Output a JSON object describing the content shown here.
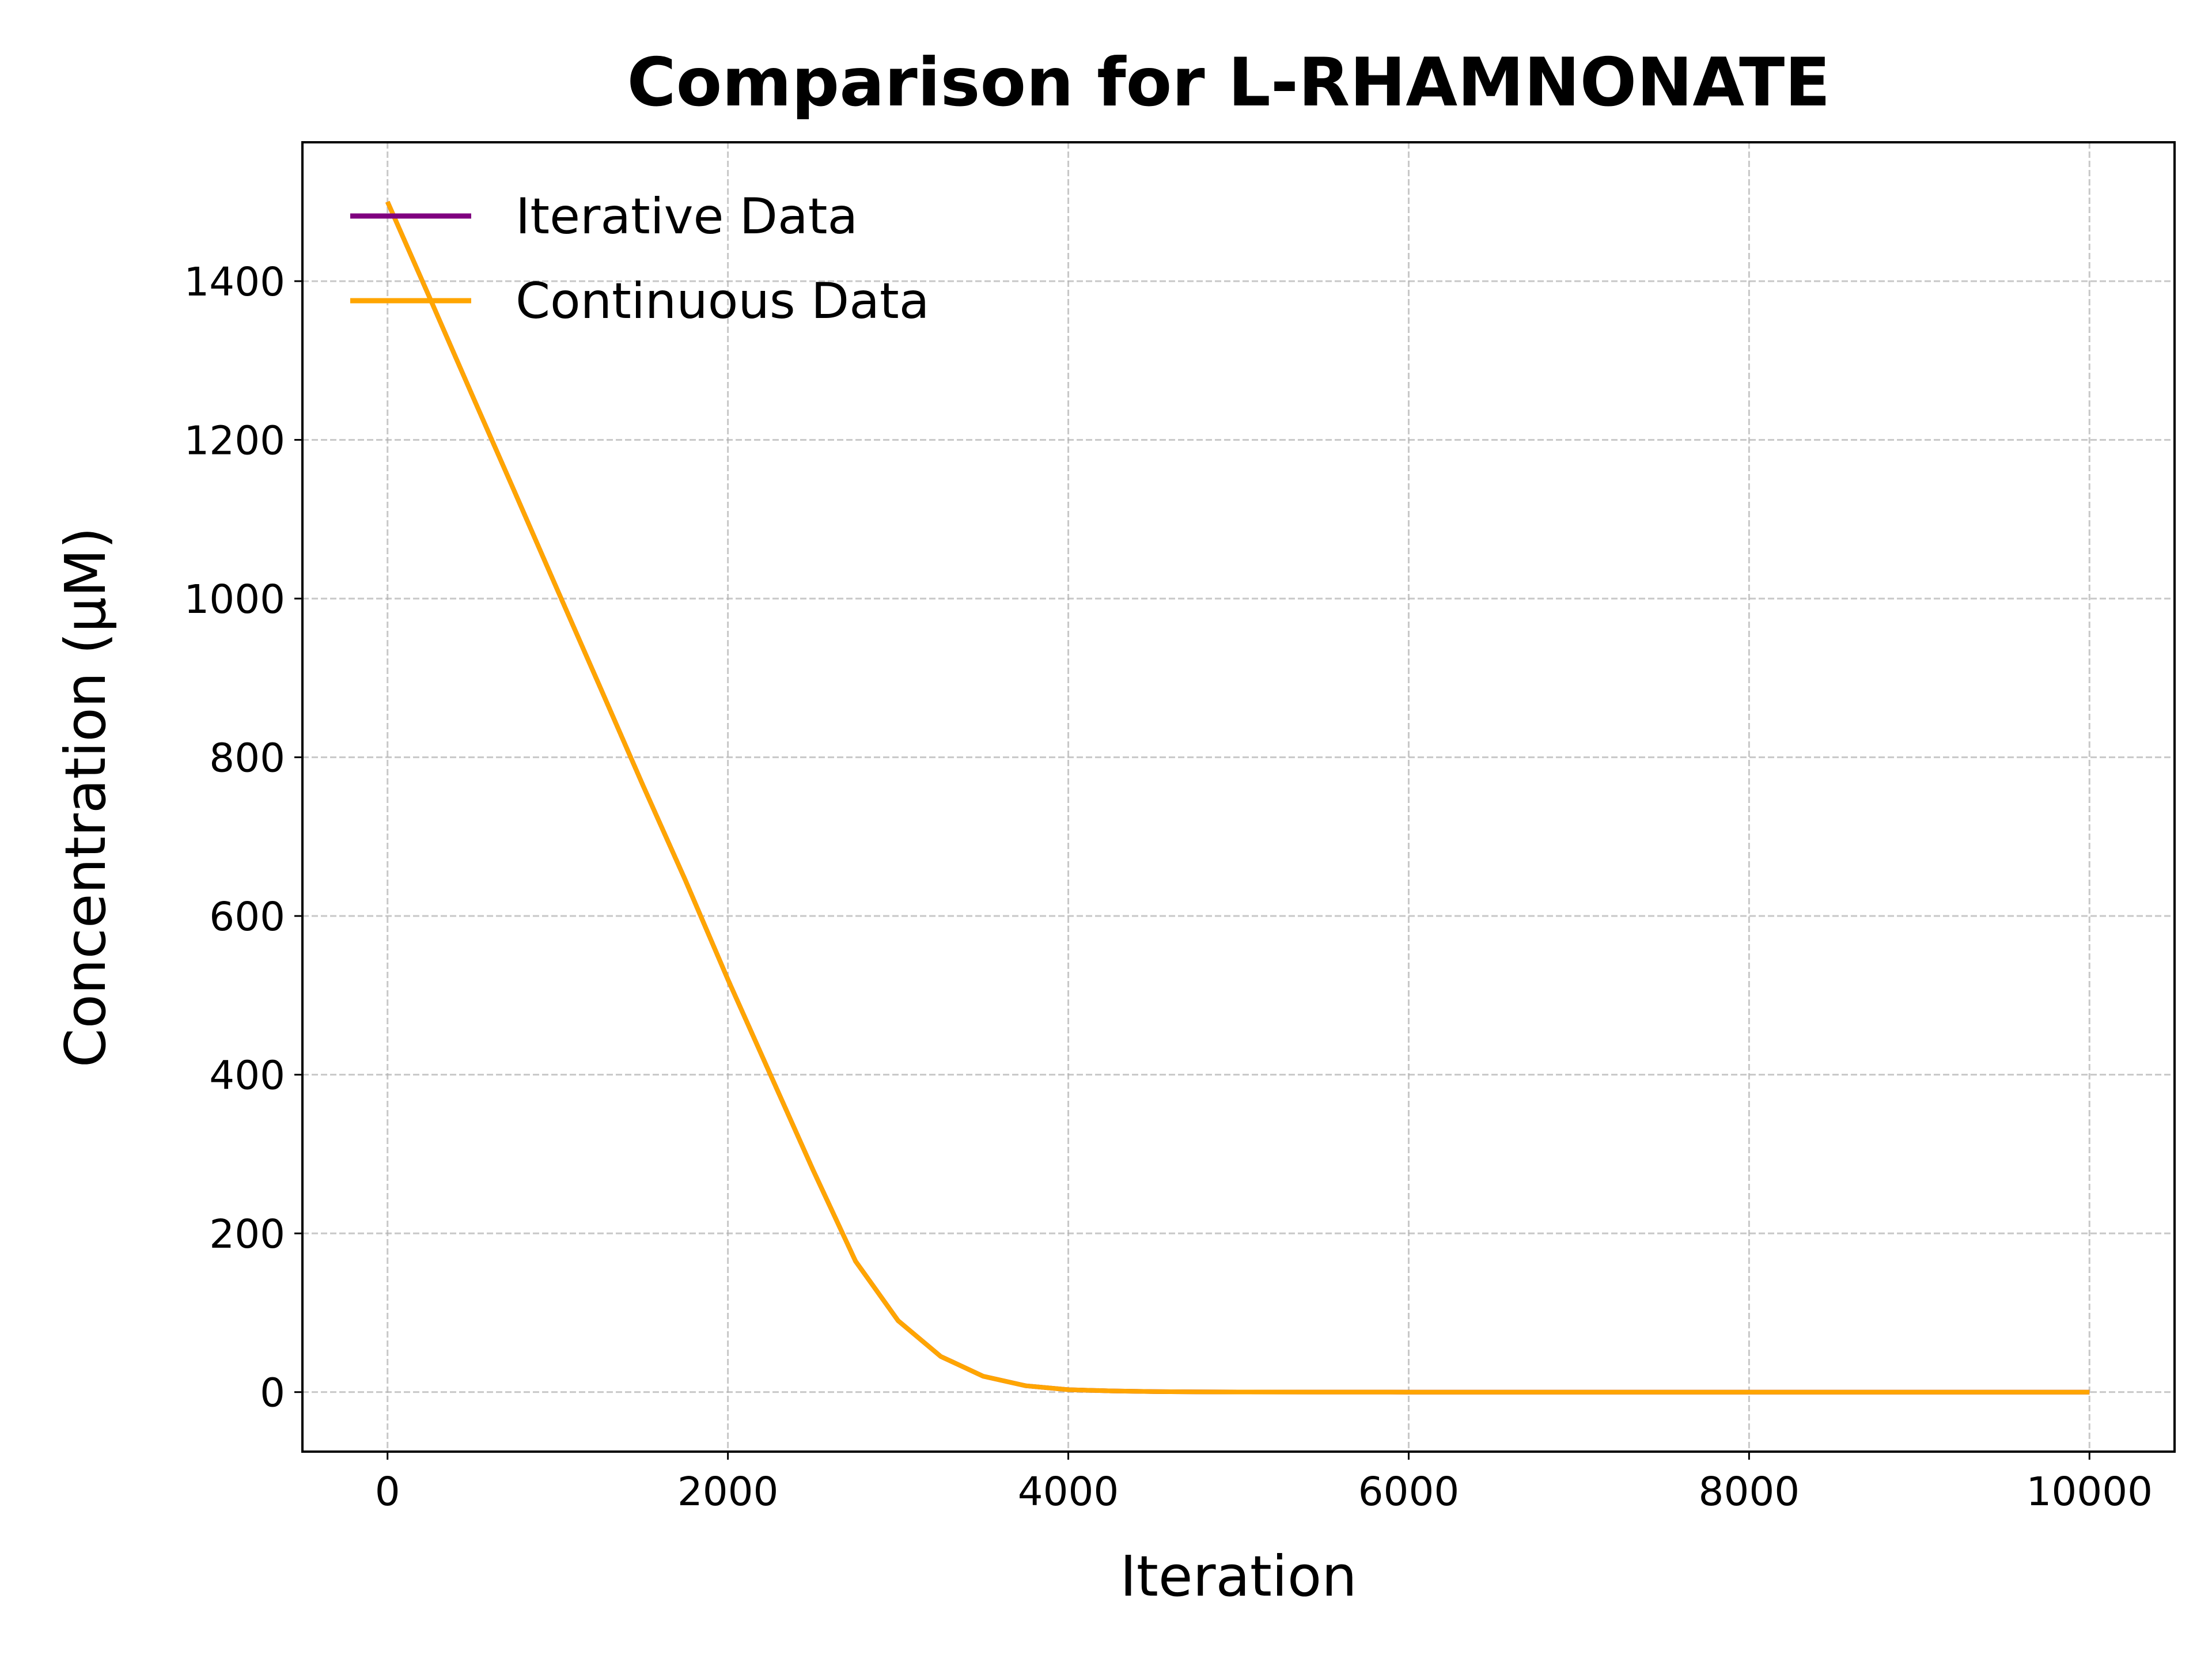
{
  "chart_data": {
    "type": "line",
    "title": "Comparison for L-RHAMNONATE",
    "xlabel": "Iteration",
    "ylabel": "Concentration (μM)",
    "xlim": [
      -500,
      10500
    ],
    "ylim": [
      -75,
      1575
    ],
    "xticks": [
      0,
      2000,
      4000,
      6000,
      8000,
      10000
    ],
    "yticks": [
      0,
      200,
      400,
      600,
      800,
      1000,
      1200,
      1400
    ],
    "grid": true,
    "legend_position": "top-left",
    "series": [
      {
        "name": "Iterative Data",
        "color": "#800080",
        "x": [
          0,
          250,
          500,
          750,
          1000,
          1250,
          1500,
          1750,
          2000,
          2250,
          2500,
          2750,
          3000,
          3250,
          3500,
          3750,
          4000,
          4250,
          4500,
          4750,
          5000,
          6000,
          7000,
          8000,
          9000,
          10000
        ],
        "y": [
          1500,
          1378,
          1255,
          1133,
          1010,
          888,
          765,
          645,
          520,
          400,
          280,
          165,
          90,
          45,
          20,
          8,
          3,
          1.5,
          0.7,
          0.3,
          0.1,
          0,
          0,
          0,
          0,
          0
        ]
      },
      {
        "name": "Continuous Data",
        "color": "#FFA500",
        "x": [
          0,
          250,
          500,
          750,
          1000,
          1250,
          1500,
          1750,
          2000,
          2250,
          2500,
          2750,
          3000,
          3250,
          3500,
          3750,
          4000,
          4250,
          4500,
          4750,
          5000,
          6000,
          7000,
          8000,
          9000,
          10000
        ],
        "y": [
          1500,
          1378,
          1255,
          1133,
          1010,
          888,
          765,
          645,
          520,
          400,
          280,
          165,
          90,
          45,
          20,
          8,
          3,
          1.5,
          0.7,
          0.3,
          0.1,
          0,
          0,
          0,
          0,
          0
        ]
      }
    ]
  }
}
